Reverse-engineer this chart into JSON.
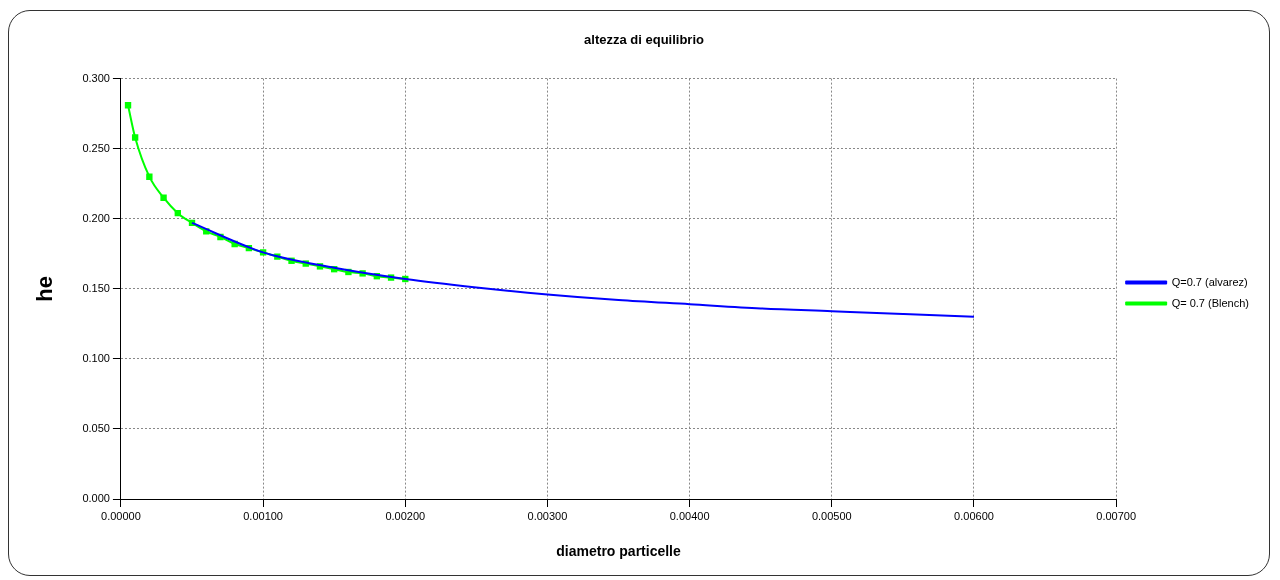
{
  "chart_data": {
    "type": "line",
    "title": "altezza di equilibrio",
    "xlabel": "diametro particelle",
    "ylabel": "he",
    "legend": "right",
    "grid": true,
    "xlim": [
      0,
      0.007
    ],
    "xticks": [
      {
        "value": 0,
        "label": "0.00000"
      },
      {
        "value": 0.001,
        "label": "0.00100"
      },
      {
        "value": 0.002,
        "label": "0.00200"
      },
      {
        "value": 0.003,
        "label": "0.00300"
      },
      {
        "value": 0.004,
        "label": "0.00400"
      },
      {
        "value": 0.005,
        "label": "0.00500"
      },
      {
        "value": 0.006,
        "label": "0.00600"
      },
      {
        "value": 0.007,
        "label": "0.00700"
      }
    ],
    "ylim": [
      0,
      0.3
    ],
    "yticks": [
      {
        "value": 0,
        "label": "0.000"
      },
      {
        "value": 0.05,
        "label": "0.050"
      },
      {
        "value": 0.1,
        "label": "0.100"
      },
      {
        "value": 0.15,
        "label": "0.150"
      },
      {
        "value": 0.2,
        "label": "0.200"
      },
      {
        "value": 0.25,
        "label": "0.250"
      },
      {
        "value": 0.3,
        "label": "0.300"
      }
    ],
    "series": [
      {
        "name": "Q=0.7 (alvarez)",
        "color": "#0000ff",
        "marker": "none",
        "x": [
          0.0005,
          0.001,
          0.0015,
          0.002,
          0.0025,
          0.003,
          0.0035,
          0.004,
          0.0045,
          0.005,
          0.0055,
          0.006
        ],
        "values": [
          0.197,
          0.176,
          0.165,
          0.157,
          0.151,
          0.146,
          0.142,
          0.139,
          0.136,
          0.134,
          0.132,
          0.13
        ]
      },
      {
        "name": "Q= 0.7 (Blench)",
        "color": "#00ff00",
        "marker": "square",
        "x": [
          5e-05,
          0.0001,
          0.0002,
          0.0003,
          0.0004,
          0.0005,
          0.0006,
          0.0007,
          0.0008,
          0.0009,
          0.001,
          0.0011,
          0.0012,
          0.0013,
          0.0014,
          0.0015,
          0.0016,
          0.0017,
          0.0018,
          0.0019,
          0.002
        ],
        "values": [
          0.281,
          0.258,
          0.23,
          0.215,
          0.204,
          0.197,
          0.191,
          0.187,
          0.182,
          0.179,
          0.176,
          0.173,
          0.17,
          0.168,
          0.166,
          0.164,
          0.162,
          0.161,
          0.159,
          0.158,
          0.157
        ]
      }
    ]
  }
}
